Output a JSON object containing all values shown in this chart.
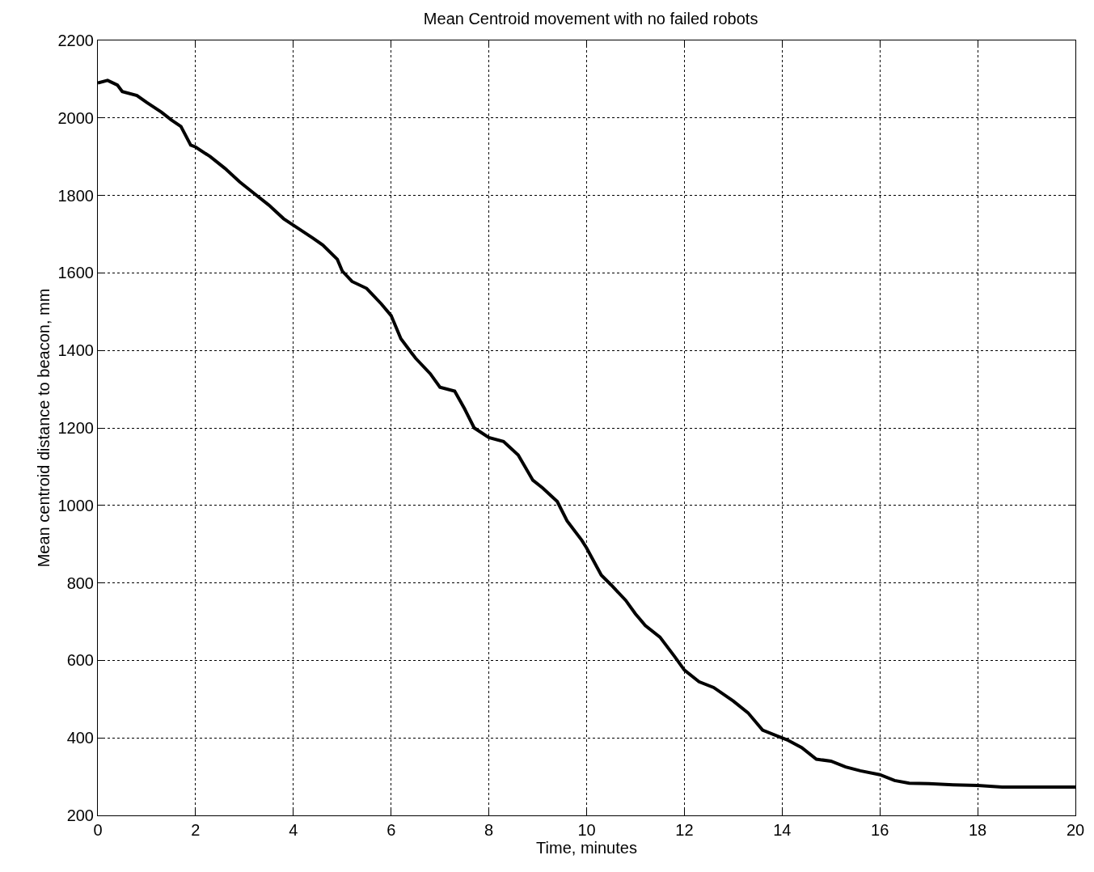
{
  "chart_data": {
    "type": "line",
    "title": "Mean Centroid movement with no failed robots",
    "xlabel": "Time, minutes",
    "ylabel": "Mean centroid distance to beacon, mm",
    "x": [
      0,
      0.2,
      0.4,
      0.5,
      0.8,
      1.0,
      1.3,
      1.5,
      1.7,
      1.9,
      2.0,
      2.3,
      2.6,
      2.9,
      3.2,
      3.5,
      3.8,
      4.1,
      4.4,
      4.6,
      4.9,
      5.0,
      5.2,
      5.5,
      5.8,
      6.0,
      6.2,
      6.5,
      6.8,
      7.0,
      7.3,
      7.5,
      7.7,
      8.0,
      8.3,
      8.6,
      8.9,
      9.1,
      9.4,
      9.6,
      9.9,
      10.0,
      10.3,
      10.5,
      10.8,
      11.0,
      11.2,
      11.5,
      11.8,
      12.0,
      12.3,
      12.6,
      13.0,
      13.3,
      13.6,
      13.9,
      14.1,
      14.4,
      14.7,
      15.0,
      15.3,
      15.6,
      16.0,
      16.3,
      16.6,
      17.0,
      17.5,
      18.0,
      18.5,
      19.0,
      20.0
    ],
    "series": [
      {
        "color": "#000000",
        "values": [
          2090,
          2097,
          2085,
          2068,
          2058,
          2040,
          2015,
          1995,
          1978,
          1930,
          1925,
          1900,
          1870,
          1835,
          1805,
          1775,
          1740,
          1715,
          1690,
          1672,
          1635,
          1605,
          1578,
          1560,
          1520,
          1490,
          1430,
          1380,
          1340,
          1305,
          1295,
          1250,
          1200,
          1175,
          1165,
          1130,
          1065,
          1045,
          1010,
          960,
          910,
          890,
          820,
          795,
          755,
          720,
          690,
          660,
          610,
          575,
          545,
          530,
          495,
          465,
          420,
          405,
          395,
          375,
          345,
          340,
          325,
          315,
          305,
          290,
          283,
          282,
          279,
          277,
          273,
          273,
          273
        ]
      }
    ],
    "xlim": [
      0,
      20
    ],
    "xticks": [
      0,
      2,
      4,
      6,
      8,
      10,
      12,
      14,
      16,
      18,
      20
    ],
    "ylim": [
      200,
      2200
    ],
    "yticks": [
      200,
      400,
      600,
      800,
      1000,
      1200,
      1400,
      1600,
      1800,
      2000,
      2200
    ],
    "grid": true,
    "marker": "none",
    "line_style": "solid"
  }
}
